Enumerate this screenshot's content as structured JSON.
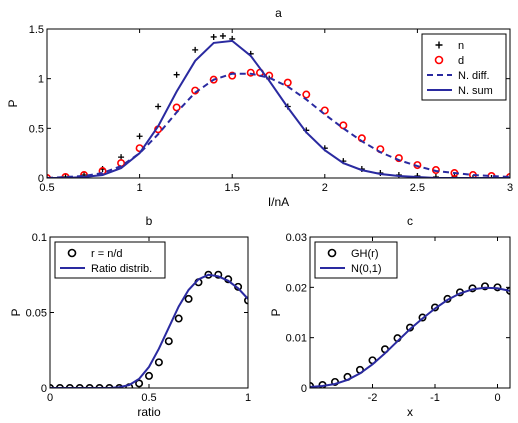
{
  "chart_data": [
    {
      "panel": "a",
      "type": "scatter",
      "title": "a",
      "xlabel": "I/nA",
      "ylabel": "P",
      "xlim": [
        0.5,
        3
      ],
      "ylim": [
        0,
        1.5
      ],
      "x_ticks": [
        "0.5",
        "1",
        "1.5",
        "2",
        "2.5",
        "3"
      ],
      "y_ticks": [
        "0",
        "0.5",
        "1",
        "1.5"
      ],
      "legend_position": "top-right",
      "series": [
        {
          "name": "n",
          "marker": "+",
          "color": "#000000",
          "x": [
            0.5,
            0.6,
            0.7,
            0.8,
            0.9,
            1.0,
            1.1,
            1.2,
            1.3,
            1.4,
            1.45,
            1.5,
            1.6,
            1.7,
            1.8,
            1.9,
            2.0,
            2.1,
            2.2,
            2.3,
            2.4,
            2.5,
            2.6,
            2.7,
            2.8,
            2.9,
            3.0
          ],
          "y": [
            0.0,
            0.01,
            0.03,
            0.09,
            0.21,
            0.42,
            0.72,
            1.04,
            1.29,
            1.42,
            1.43,
            1.4,
            1.25,
            1.0,
            0.72,
            0.48,
            0.3,
            0.17,
            0.09,
            0.05,
            0.03,
            0.02,
            0.01,
            0.01,
            0.0,
            0.0,
            0.0
          ]
        },
        {
          "name": "d",
          "marker": "o",
          "color": "#ff0000",
          "x": [
            0.5,
            0.6,
            0.7,
            0.8,
            0.9,
            1.0,
            1.1,
            1.2,
            1.3,
            1.4,
            1.5,
            1.6,
            1.65,
            1.7,
            1.8,
            1.9,
            2.0,
            2.1,
            2.2,
            2.3,
            2.4,
            2.5,
            2.6,
            2.7,
            2.8,
            2.9,
            3.0
          ],
          "y": [
            0.0,
            0.01,
            0.03,
            0.07,
            0.15,
            0.3,
            0.49,
            0.71,
            0.88,
            0.99,
            1.03,
            1.06,
            1.06,
            1.03,
            0.96,
            0.84,
            0.68,
            0.53,
            0.4,
            0.29,
            0.2,
            0.13,
            0.08,
            0.05,
            0.03,
            0.02,
            0.01
          ]
        },
        {
          "name": "N. diff.",
          "line": "dashed",
          "color": "#2a2aa0",
          "x": [
            0.5,
            0.6,
            0.7,
            0.8,
            0.9,
            1.0,
            1.1,
            1.2,
            1.3,
            1.4,
            1.5,
            1.6,
            1.7,
            1.8,
            1.9,
            2.0,
            2.1,
            2.2,
            2.3,
            2.4,
            2.5,
            2.6,
            2.7,
            2.8,
            2.9,
            3.0
          ],
          "y": [
            0.0,
            0.01,
            0.02,
            0.05,
            0.12,
            0.25,
            0.44,
            0.66,
            0.86,
            0.99,
            1.05,
            1.05,
            1.01,
            0.92,
            0.79,
            0.64,
            0.5,
            0.37,
            0.26,
            0.18,
            0.12,
            0.07,
            0.05,
            0.03,
            0.02,
            0.01
          ]
        },
        {
          "name": "N. sum",
          "line": "solid",
          "color": "#2a2aa0",
          "x": [
            0.5,
            0.6,
            0.7,
            0.8,
            0.9,
            1.0,
            1.1,
            1.2,
            1.3,
            1.4,
            1.5,
            1.6,
            1.7,
            1.8,
            1.9,
            2.0,
            2.1,
            2.2,
            2.3,
            2.4,
            2.5,
            2.6,
            2.7,
            2.8,
            2.9,
            3.0
          ],
          "y": [
            0.0,
            0.0,
            0.01,
            0.03,
            0.1,
            0.25,
            0.52,
            0.87,
            1.18,
            1.36,
            1.38,
            1.23,
            0.98,
            0.71,
            0.46,
            0.28,
            0.15,
            0.08,
            0.04,
            0.02,
            0.01,
            0.0,
            0.0,
            0.0,
            0.0,
            0.0
          ]
        }
      ]
    },
    {
      "panel": "b",
      "type": "scatter",
      "title": "b",
      "xlabel": "ratio",
      "ylabel": "P",
      "xlim": [
        0,
        1
      ],
      "ylim": [
        0,
        0.1
      ],
      "x_ticks": [
        "0",
        "0.5",
        "1"
      ],
      "y_ticks": [
        "0",
        "0.05",
        "0.1"
      ],
      "legend_position": "top-left",
      "series": [
        {
          "name": "r = n/d",
          "marker": "o",
          "color": "#000000",
          "x": [
            0,
            0.05,
            0.1,
            0.15,
            0.2,
            0.25,
            0.3,
            0.35,
            0.4,
            0.45,
            0.5,
            0.55,
            0.6,
            0.65,
            0.7,
            0.75,
            0.8,
            0.85,
            0.9,
            0.95,
            1.0
          ],
          "y": [
            0,
            0,
            0,
            0,
            0,
            0,
            0,
            0,
            0.0005,
            0.003,
            0.008,
            0.017,
            0.031,
            0.046,
            0.059,
            0.07,
            0.075,
            0.075,
            0.072,
            0.067,
            0.058
          ]
        },
        {
          "name": "Ratio distrib.",
          "line": "solid",
          "color": "#2a2aa0",
          "x": [
            0,
            0.1,
            0.2,
            0.3,
            0.35,
            0.4,
            0.45,
            0.5,
            0.55,
            0.6,
            0.65,
            0.7,
            0.75,
            0.8,
            0.85,
            0.9,
            0.95,
            1.0
          ],
          "y": [
            0,
            0,
            0,
            0,
            0.0005,
            0.002,
            0.006,
            0.014,
            0.026,
            0.04,
            0.054,
            0.065,
            0.072,
            0.075,
            0.074,
            0.071,
            0.066,
            0.059
          ]
        }
      ]
    },
    {
      "panel": "c",
      "type": "scatter",
      "title": "c",
      "xlabel": "x",
      "ylabel": "P",
      "xlim": [
        -3,
        0.2
      ],
      "ylim": [
        0,
        0.03
      ],
      "x_ticks": [
        "-2",
        "-1",
        "0"
      ],
      "y_ticks": [
        "0",
        "0.01",
        "0.02",
        "0.03"
      ],
      "legend_position": "top-left",
      "series": [
        {
          "name": "GH(r)",
          "marker": "o",
          "color": "#000000",
          "x": [
            -3.0,
            -2.8,
            -2.6,
            -2.4,
            -2.2,
            -2.0,
            -1.8,
            -1.6,
            -1.4,
            -1.2,
            -1.0,
            -0.8,
            -0.6,
            -0.4,
            -0.2,
            0.0,
            0.2
          ],
          "y": [
            0.0004,
            0.0006,
            0.0012,
            0.0022,
            0.0036,
            0.0055,
            0.0077,
            0.0099,
            0.012,
            0.014,
            0.016,
            0.0177,
            0.019,
            0.0198,
            0.0202,
            0.02,
            0.0193
          ]
        },
        {
          "name": "N(0,1)",
          "line": "solid",
          "color": "#2a2aa0",
          "x": [
            -3.0,
            -2.8,
            -2.6,
            -2.4,
            -2.2,
            -2.0,
            -1.8,
            -1.6,
            -1.4,
            -1.2,
            -1.0,
            -0.8,
            -0.6,
            -0.4,
            -0.2,
            0.0,
            0.2
          ],
          "y": [
            0.0002,
            0.0004,
            0.0008,
            0.0016,
            0.0029,
            0.0047,
            0.0069,
            0.0093,
            0.0117,
            0.0138,
            0.0158,
            0.0175,
            0.0188,
            0.0196,
            0.0199,
            0.0198,
            0.0193
          ]
        }
      ]
    }
  ]
}
